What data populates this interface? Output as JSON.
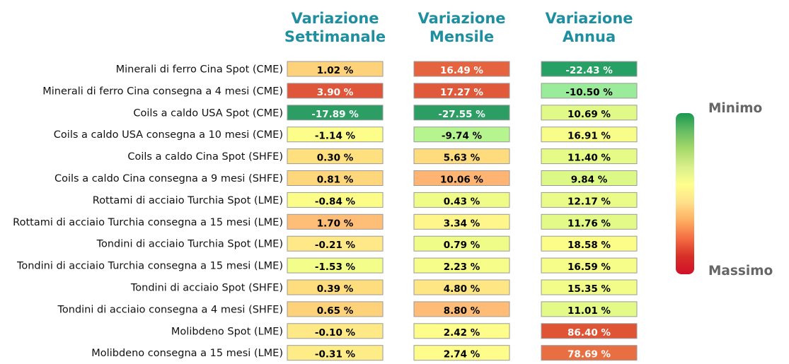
{
  "chart_data": {
    "type": "heatmap",
    "columns": [
      {
        "title": [
          "Variazione",
          "Settimanale"
        ]
      },
      {
        "title": [
          "Variazione",
          "Mensile"
        ]
      },
      {
        "title": [
          "Variazione",
          "Annua"
        ]
      }
    ],
    "rows": [
      {
        "label": "Minerali di ferro Cina Spot (CME)",
        "values": [
          1.02,
          16.49,
          -22.43
        ],
        "texts": [
          "1.02 %",
          "16.49 %",
          "-22.43 %"
        ],
        "colors": [
          "#fed27a",
          "#e5643f",
          "#26a064"
        ],
        "text_colors": [
          "#000000",
          "#ffffff",
          "#ffffff"
        ]
      },
      {
        "label": "Minerali di ferro Cina consegna a 4 mesi (CME)",
        "values": [
          3.9,
          17.27,
          -10.5
        ],
        "texts": [
          "3.90 %",
          "17.27 %",
          "-10.50 %"
        ],
        "colors": [
          "#e0563a",
          "#e0593b",
          "#9aeb9a"
        ],
        "text_colors": [
          "#ffffff",
          "#ffffff",
          "#000000"
        ]
      },
      {
        "label": "Coils a caldo USA Spot (CME)",
        "values": [
          -17.89,
          -27.55,
          10.69
        ],
        "texts": [
          "-17.89 %",
          "-27.55 %",
          "10.69 %"
        ],
        "colors": [
          "#2c9e64",
          "#2c9e64",
          "#e1f987"
        ],
        "text_colors": [
          "#ffffff",
          "#ffffff",
          "#000000"
        ]
      },
      {
        "label": "Coils a caldo USA consegna a 10 mesi (CME)",
        "values": [
          -1.14,
          -9.74,
          16.91
        ],
        "texts": [
          "-1.14 %",
          "-9.74 %",
          "16.91 %"
        ],
        "colors": [
          "#fdfd8a",
          "#b6f48f",
          "#f8fd89"
        ],
        "text_colors": [
          "#000000",
          "#000000",
          "#000000"
        ]
      },
      {
        "label": "Coils a caldo Cina Spot (SHFE)",
        "values": [
          0.3,
          5.63,
          11.4
        ],
        "texts": [
          "0.30 %",
          "5.63 %",
          "11.40 %"
        ],
        "colors": [
          "#fee07f",
          "#fedc7e",
          "#e6fa88"
        ],
        "text_colors": [
          "#000000",
          "#000000",
          "#000000"
        ]
      },
      {
        "label": "Coils a caldo Cina consegna a 9 mesi (SHFE)",
        "values": [
          0.81,
          10.06,
          9.84
        ],
        "texts": [
          "0.81 %",
          "10.06 %",
          "9.84 %"
        ],
        "colors": [
          "#fed67b",
          "#feb574",
          "#dcf886"
        ],
        "text_colors": [
          "#000000",
          "#000000",
          "#000000"
        ]
      },
      {
        "label": "Rottami di acciaio Turchia Spot (LME)",
        "values": [
          -0.84,
          0.43,
          12.17
        ],
        "texts": [
          "-0.84 %",
          "0.43 %",
          "12.17 %"
        ],
        "colors": [
          "#fcfd88",
          "#f0fc88",
          "#ebfb88"
        ],
        "text_colors": [
          "#000000",
          "#000000",
          "#000000"
        ]
      },
      {
        "label": "Rottami di acciaio Turchia consegna a 15 mesi (LME)",
        "values": [
          1.7,
          3.34,
          11.76
        ],
        "texts": [
          "1.70 %",
          "3.34 %",
          "11.76 %"
        ],
        "colors": [
          "#febe77",
          "#fef68a",
          "#e4fa88"
        ],
        "text_colors": [
          "#000000",
          "#000000",
          "#000000"
        ]
      },
      {
        "label": "Tondini di acciaio Turchia Spot (LME)",
        "values": [
          -0.21,
          0.79,
          18.58
        ],
        "texts": [
          "-0.21 %",
          "0.79 %",
          "18.58 %"
        ],
        "colors": [
          "#fee887",
          "#f0fc88",
          "#fcfd89"
        ],
        "text_colors": [
          "#000000",
          "#000000",
          "#000000"
        ]
      },
      {
        "label": "Tondini di acciaio Turchia consegna a 15 mesi (LME)",
        "values": [
          -1.53,
          2.23,
          16.59
        ],
        "texts": [
          "-1.53 %",
          "2.23 %",
          "16.59 %"
        ],
        "colors": [
          "#f3fd8a",
          "#f6fd89",
          "#f6fd89"
        ],
        "text_colors": [
          "#000000",
          "#000000",
          "#000000"
        ]
      },
      {
        "label": "Tondini di acciaio Spot (SHFE)",
        "values": [
          0.39,
          4.8,
          15.35
        ],
        "texts": [
          "0.39 %",
          "4.80 %",
          "15.35 %"
        ],
        "colors": [
          "#fedd7e",
          "#fee685",
          "#f2fc89"
        ],
        "text_colors": [
          "#000000",
          "#000000",
          "#000000"
        ]
      },
      {
        "label": "Tondini di acciaio consegna a 4 mesi (SHFE)",
        "values": [
          0.65,
          8.8,
          11.01
        ],
        "texts": [
          "0.65 %",
          "8.80 %",
          "11.01 %"
        ],
        "colors": [
          "#fed27b",
          "#febc77",
          "#e3fa88"
        ],
        "text_colors": [
          "#000000",
          "#000000",
          "#000000"
        ]
      },
      {
        "label": "Molibdeno Spot (LME)",
        "values": [
          -0.1,
          2.42,
          86.4
        ],
        "texts": [
          "-0.10 %",
          "2.42 %",
          "86.40 %"
        ],
        "colors": [
          "#fee986",
          "#fefc8a",
          "#df5435"
        ],
        "text_colors": [
          "#000000",
          "#000000",
          "#ffffff"
        ]
      },
      {
        "label": "Molibdeno consegna a 15 mesi (LME)",
        "values": [
          -0.31,
          2.74,
          78.69
        ],
        "texts": [
          "-0.31 %",
          "2.74 %",
          "78.69 %"
        ],
        "colors": [
          "#feec87",
          "#fefc8a",
          "#e86f42"
        ],
        "text_colors": [
          "#000000",
          "#000000",
          "#ffffff"
        ]
      }
    ],
    "legend": {
      "top_label": "Minimo",
      "bottom_label": "Massimo",
      "gradient": [
        "#1a9850",
        "#66bd63",
        "#a6d96a",
        "#d9ef8b",
        "#ffff8c",
        "#fee08b",
        "#fdae61",
        "#f46d43",
        "#d73027",
        "#d0102a"
      ]
    }
  }
}
